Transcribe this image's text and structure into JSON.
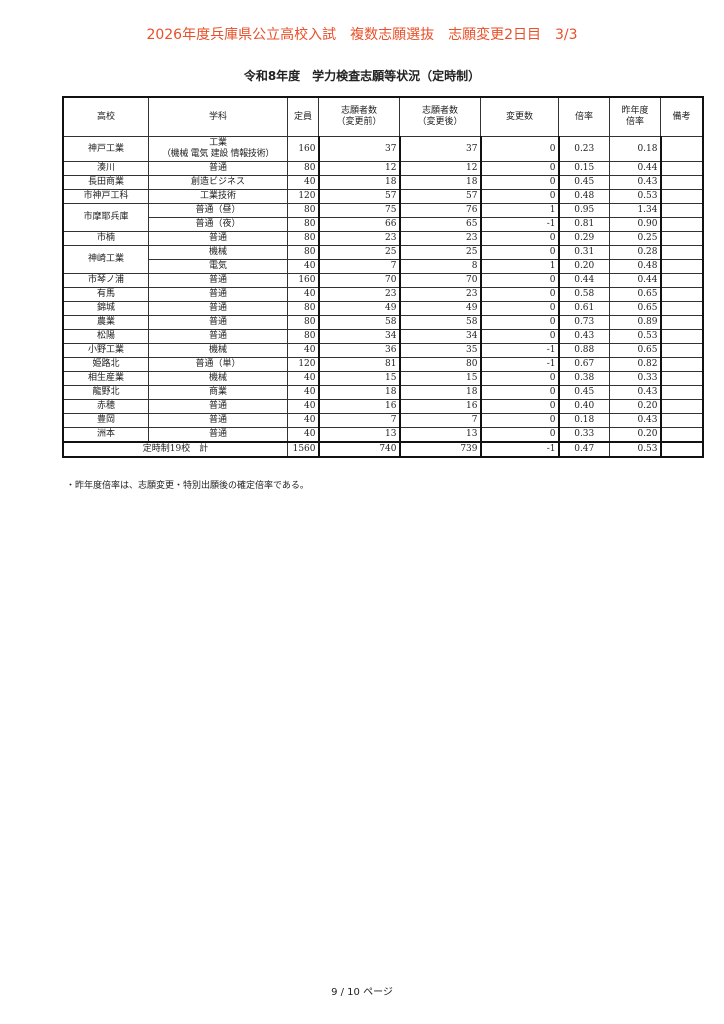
{
  "banner": "2026年度兵庫県公立高校入試　複数志願選抜　志願変更2日目　3/3",
  "title": "令和8年度　学力検査志願等状況（定時制）",
  "headers": [
    "高校",
    "学科",
    "定員",
    "志願者数\n（変更前）",
    "志願者数\n（変更後）",
    "変更数",
    "倍率",
    "昨年度\n倍率",
    "備考"
  ],
  "rows": [
    {
      "school": "神戸工業",
      "dept": "工業\n（機械 電気 建設 情報技術）",
      "cap": "160",
      "before": "37",
      "after": "37",
      "chg": "0",
      "rate": "0.23",
      "last": "0.18"
    },
    {
      "school": "湊川",
      "dept": "普通",
      "cap": "80",
      "before": "12",
      "after": "12",
      "chg": "0",
      "rate": "0.15",
      "last": "0.44"
    },
    {
      "school": "長田商業",
      "dept": "創造ビジネス",
      "cap": "40",
      "before": "18",
      "after": "18",
      "chg": "0",
      "rate": "0.45",
      "last": "0.43"
    },
    {
      "school": "市神戸工科",
      "dept": "工業技術",
      "cap": "120",
      "before": "57",
      "after": "57",
      "chg": "0",
      "rate": "0.48",
      "last": "0.53"
    },
    {
      "school": "市摩耶兵庫",
      "span": 2,
      "dept": "普通（昼）",
      "cap": "80",
      "before": "75",
      "after": "76",
      "chg": "1",
      "rate": "0.95",
      "last": "1.34"
    },
    {
      "dept": "普通（夜）",
      "cap": "80",
      "before": "66",
      "after": "65",
      "chg": "-1",
      "rate": "0.81",
      "last": "0.90"
    },
    {
      "school": "市楠",
      "dept": "普通",
      "cap": "80",
      "before": "23",
      "after": "23",
      "chg": "0",
      "rate": "0.29",
      "last": "0.25"
    },
    {
      "school": "神崎工業",
      "span": 2,
      "dept": "機械",
      "cap": "80",
      "before": "25",
      "after": "25",
      "chg": "0",
      "rate": "0.31",
      "last": "0.28"
    },
    {
      "dept": "電気",
      "cap": "40",
      "before": "7",
      "after": "8",
      "chg": "1",
      "rate": "0.20",
      "last": "0.48"
    },
    {
      "school": "市琴ノ浦",
      "dept": "普通",
      "cap": "160",
      "before": "70",
      "after": "70",
      "chg": "0",
      "rate": "0.44",
      "last": "0.44"
    },
    {
      "school": "有馬",
      "dept": "普通",
      "cap": "40",
      "before": "23",
      "after": "23",
      "chg": "0",
      "rate": "0.58",
      "last": "0.65"
    },
    {
      "school": "錦城",
      "dept": "普通",
      "cap": "80",
      "before": "49",
      "after": "49",
      "chg": "0",
      "rate": "0.61",
      "last": "0.65"
    },
    {
      "school": "農業",
      "dept": "普通",
      "cap": "80",
      "before": "58",
      "after": "58",
      "chg": "0",
      "rate": "0.73",
      "last": "0.89"
    },
    {
      "school": "松陽",
      "dept": "普通",
      "cap": "80",
      "before": "34",
      "after": "34",
      "chg": "0",
      "rate": "0.43",
      "last": "0.53"
    },
    {
      "school": "小野工業",
      "dept": "機械",
      "cap": "40",
      "before": "36",
      "after": "35",
      "chg": "-1",
      "rate": "0.88",
      "last": "0.65"
    },
    {
      "school": "姫路北",
      "dept": "普通（単）",
      "cap": "120",
      "before": "81",
      "after": "80",
      "chg": "-1",
      "rate": "0.67",
      "last": "0.82"
    },
    {
      "school": "相生産業",
      "dept": "機械",
      "cap": "40",
      "before": "15",
      "after": "15",
      "chg": "0",
      "rate": "0.38",
      "last": "0.33"
    },
    {
      "school": "龍野北",
      "dept": "商業",
      "cap": "40",
      "before": "18",
      "after": "18",
      "chg": "0",
      "rate": "0.45",
      "last": "0.43"
    },
    {
      "school": "赤穂",
      "dept": "普通",
      "cap": "40",
      "before": "16",
      "after": "16",
      "chg": "0",
      "rate": "0.40",
      "last": "0.20"
    },
    {
      "school": "豊岡",
      "dept": "普通",
      "cap": "40",
      "before": "7",
      "after": "7",
      "chg": "0",
      "rate": "0.18",
      "last": "0.43"
    },
    {
      "school": "洲本",
      "dept": "普通",
      "cap": "40",
      "before": "13",
      "after": "13",
      "chg": "0",
      "rate": "0.33",
      "last": "0.20"
    }
  ],
  "total": {
    "label": "定時制19校　計",
    "cap": "1560",
    "before": "740",
    "after": "739",
    "chg": "-1",
    "rate": "0.47",
    "last": "0.53"
  },
  "note": "・昨年度倍率は、志願変更・特別出願後の確定倍率である。",
  "footer": "9 / 10 ページ",
  "colors": {
    "banner": "#e8502a"
  }
}
